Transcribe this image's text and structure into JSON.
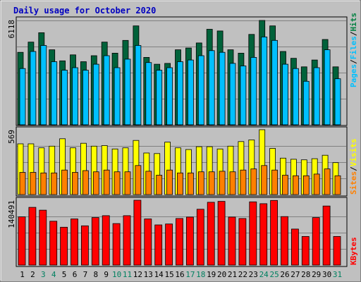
{
  "title": "Daily usage for October 2020",
  "colors": {
    "background": "#c0c0c0",
    "title": "#0000c0",
    "hits": "#008040",
    "hits_dark": "#00623a",
    "files": "#00c0ff",
    "pages": "#00c0ff",
    "visits": "#ffff00",
    "sites": "#ff8000",
    "kbytes": "#ff0000",
    "day_weekday": "#000000",
    "day_weekend": "#008060"
  },
  "chart_data": [
    {
      "type": "bar",
      "panel": "hits-files-pages",
      "ymax_label": "6118",
      "legend": [
        "Pages",
        "Files",
        "Hits"
      ],
      "legend_separator": "/",
      "ylim": [
        0,
        6118
      ],
      "categories": [
        "1",
        "2",
        "3",
        "4",
        "5",
        "6",
        "7",
        "8",
        "9",
        "10",
        "11",
        "12",
        "13",
        "14",
        "15",
        "16",
        "17",
        "18",
        "19",
        "20",
        "21",
        "22",
        "23",
        "24",
        "25",
        "26",
        "27",
        "28",
        "29",
        "30",
        "31"
      ],
      "series": [
        {
          "name": "Hits",
          "values": [
            4250,
            4850,
            5400,
            4400,
            3750,
            4100,
            3700,
            4050,
            4850,
            4200,
            4950,
            5800,
            3950,
            3550,
            3600,
            4400,
            4500,
            4800,
            5600,
            5500,
            4400,
            4200,
            5300,
            6118,
            5800,
            4300,
            3900,
            3400,
            3800,
            5000,
            3400
          ]
        },
        {
          "name": "Files",
          "values": [
            3300,
            4300,
            4650,
            3700,
            3200,
            3350,
            3200,
            3550,
            4050,
            3350,
            3850,
            4650,
            3650,
            3200,
            3350,
            3700,
            3800,
            4050,
            4350,
            4250,
            3600,
            3450,
            3950,
            5150,
            4950,
            3550,
            3300,
            2550,
            3350,
            4400,
            2700
          ]
        },
        {
          "name": "Pages",
          "values": [
            3300,
            4300,
            4650,
            3700,
            3200,
            3350,
            3200,
            3550,
            4050,
            3350,
            3850,
            4650,
            3650,
            3200,
            3350,
            3700,
            3800,
            4050,
            4350,
            4250,
            3600,
            3450,
            3950,
            5150,
            4950,
            3550,
            3300,
            2550,
            3350,
            4400,
            2700
          ]
        }
      ]
    },
    {
      "type": "bar",
      "panel": "visits-sites",
      "ymax_label": "569",
      "legend": [
        "Sites",
        "Visits"
      ],
      "legend_separator": "/",
      "ylim": [
        0,
        569
      ],
      "categories": [
        "1",
        "2",
        "3",
        "4",
        "5",
        "6",
        "7",
        "8",
        "9",
        "10",
        "11",
        "12",
        "13",
        "14",
        "15",
        "16",
        "17",
        "18",
        "19",
        "20",
        "21",
        "22",
        "23",
        "24",
        "25",
        "26",
        "27",
        "28",
        "29",
        "30",
        "31"
      ],
      "series": [
        {
          "name": "Visits",
          "values": [
            445,
            445,
            410,
            425,
            490,
            410,
            450,
            425,
            430,
            400,
            410,
            475,
            365,
            360,
            460,
            410,
            395,
            420,
            420,
            400,
            425,
            465,
            480,
            569,
            405,
            320,
            310,
            305,
            315,
            345,
            280
          ]
        },
        {
          "name": "Sites",
          "values": [
            195,
            195,
            190,
            190,
            215,
            195,
            210,
            200,
            215,
            200,
            200,
            255,
            205,
            170,
            215,
            190,
            190,
            200,
            200,
            205,
            200,
            215,
            225,
            255,
            215,
            170,
            165,
            165,
            180,
            225,
            165
          ]
        }
      ]
    },
    {
      "type": "bar",
      "panel": "kbytes",
      "ymax_label": "140491",
      "legend": [
        "KBytes"
      ],
      "ylim": [
        0,
        140491
      ],
      "categories": [
        "1",
        "2",
        "3",
        "4",
        "5",
        "6",
        "7",
        "8",
        "9",
        "10",
        "11",
        "12",
        "13",
        "14",
        "15",
        "16",
        "17",
        "18",
        "19",
        "20",
        "21",
        "22",
        "23",
        "24",
        "25",
        "26",
        "27",
        "28",
        "29",
        "30",
        "31"
      ],
      "series": [
        {
          "name": "KBytes",
          "values": [
            104500,
            125000,
            119000,
            95000,
            82000,
            100000,
            85000,
            103000,
            107000,
            90000,
            107000,
            140491,
            100000,
            87000,
            89000,
            101000,
            104000,
            121000,
            136000,
            138000,
            104000,
            101000,
            137000,
            133000,
            140000,
            105000,
            78000,
            62000,
            103000,
            128000,
            62000
          ]
        }
      ]
    }
  ],
  "days": [
    {
      "label": "1",
      "weekend": false
    },
    {
      "label": "2",
      "weekend": false
    },
    {
      "label": "3",
      "weekend": true
    },
    {
      "label": "4",
      "weekend": true
    },
    {
      "label": "5",
      "weekend": false
    },
    {
      "label": "6",
      "weekend": false
    },
    {
      "label": "7",
      "weekend": false
    },
    {
      "label": "8",
      "weekend": false
    },
    {
      "label": "9",
      "weekend": false
    },
    {
      "label": "10",
      "weekend": true
    },
    {
      "label": "11",
      "weekend": true
    },
    {
      "label": "12",
      "weekend": false
    },
    {
      "label": "13",
      "weekend": false
    },
    {
      "label": "14",
      "weekend": false
    },
    {
      "label": "15",
      "weekend": false
    },
    {
      "label": "16",
      "weekend": false
    },
    {
      "label": "17",
      "weekend": true
    },
    {
      "label": "18",
      "weekend": true
    },
    {
      "label": "19",
      "weekend": false
    },
    {
      "label": "20",
      "weekend": false
    },
    {
      "label": "21",
      "weekend": false
    },
    {
      "label": "22",
      "weekend": false
    },
    {
      "label": "23",
      "weekend": false
    },
    {
      "label": "24",
      "weekend": true
    },
    {
      "label": "25",
      "weekend": true
    },
    {
      "label": "26",
      "weekend": false
    },
    {
      "label": "27",
      "weekend": false
    },
    {
      "label": "28",
      "weekend": false
    },
    {
      "label": "29",
      "weekend": false
    },
    {
      "label": "30",
      "weekend": false
    },
    {
      "label": "31",
      "weekend": true
    }
  ]
}
